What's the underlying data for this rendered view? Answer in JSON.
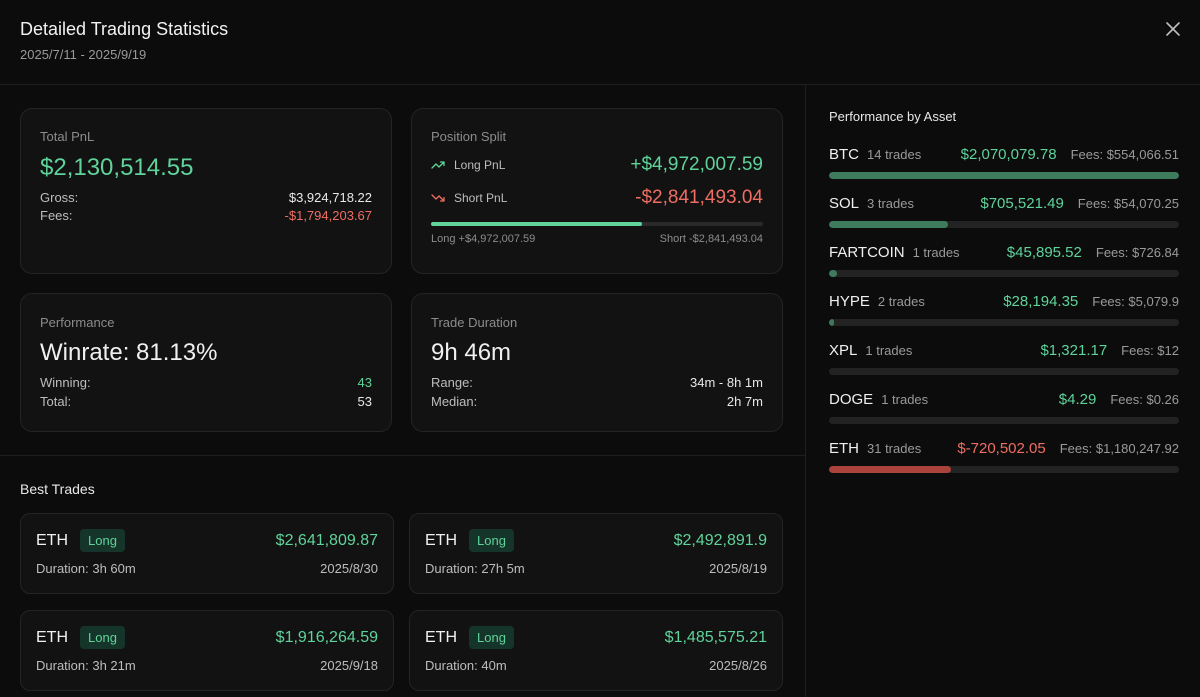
{
  "header": {
    "title": "Detailed Trading Statistics",
    "date_range": "2025/7/11 - 2025/9/19",
    "close_icon": "close-icon"
  },
  "total_pnl": {
    "label": "Total PnL",
    "value": "$2,130,514.55",
    "gross_label": "Gross:",
    "gross_value": "$3,924,718.22",
    "fees_label": "Fees:",
    "fees_value": "-$1,794,203.67"
  },
  "position_split": {
    "label": "Position Split",
    "long_label": "Long PnL",
    "long_value": "+$4,972,007.59",
    "short_label": "Short PnL",
    "short_value": "-$2,841,493.04",
    "long_share": 0.636,
    "long_caption": "Long +$4,972,007.59",
    "short_caption": "Short -$2,841,493.04",
    "long_icon": "trending-up-icon",
    "short_icon": "trending-down-icon"
  },
  "performance": {
    "label": "Performance",
    "winrate": "Winrate: 81.13%",
    "winning_label": "Winning:",
    "winning_value": "43",
    "total_label": "Total:",
    "total_value": "53"
  },
  "trade_duration": {
    "label": "Trade Duration",
    "value": "9h 46m",
    "range_label": "Range:",
    "range_value": "34m - 8h 1m",
    "median_label": "Median:",
    "median_value": "2h 7m"
  },
  "best_trades": {
    "title": "Best Trades",
    "items": [
      {
        "asset": "ETH",
        "side": "Long",
        "pnl": "$2,641,809.87",
        "duration": "Duration: 3h 60m",
        "date": "2025/8/30"
      },
      {
        "asset": "ETH",
        "side": "Long",
        "pnl": "$2,492,891.9",
        "duration": "Duration: 27h 5m",
        "date": "2025/8/19"
      },
      {
        "asset": "ETH",
        "side": "Long",
        "pnl": "$1,916,264.59",
        "duration": "Duration: 3h 21m",
        "date": "2025/9/18"
      },
      {
        "asset": "ETH",
        "side": "Long",
        "pnl": "$1,485,575.21",
        "duration": "Duration: 40m",
        "date": "2025/8/26"
      }
    ]
  },
  "asset_performance": {
    "title": "Performance by Asset",
    "colors": {
      "positive_text": "#5fd39a",
      "negative_text": "#ef6e63",
      "positive_bar": "#3e7a5c",
      "negative_bar": "#a9433c"
    },
    "items": [
      {
        "name": "BTC",
        "trades": "14 trades",
        "pnl": "$2,070,079.78",
        "fees": "Fees: $554,066.51",
        "share": 1.0,
        "negative": false
      },
      {
        "name": "SOL",
        "trades": "3 trades",
        "pnl": "$705,521.49",
        "fees": "Fees: $54,070.25",
        "share": 0.341,
        "negative": false
      },
      {
        "name": "FARTCOIN",
        "trades": "1 trades",
        "pnl": "$45,895.52",
        "fees": "Fees: $726.84",
        "share": 0.022,
        "negative": false
      },
      {
        "name": "HYPE",
        "trades": "2 trades",
        "pnl": "$28,194.35",
        "fees": "Fees: $5,079.9",
        "share": 0.014,
        "negative": false
      },
      {
        "name": "XPL",
        "trades": "1 trades",
        "pnl": "$1,321.17",
        "fees": "Fees: $12",
        "share": 0.0,
        "negative": false
      },
      {
        "name": "DOGE",
        "trades": "1 trades",
        "pnl": "$4.29",
        "fees": "Fees: $0.26",
        "share": 0.0,
        "negative": false
      },
      {
        "name": "ETH",
        "trades": "31 trades",
        "pnl": "$-720,502.05",
        "fees": "Fees: $1,180,247.92",
        "share": 0.348,
        "negative": true
      }
    ]
  }
}
